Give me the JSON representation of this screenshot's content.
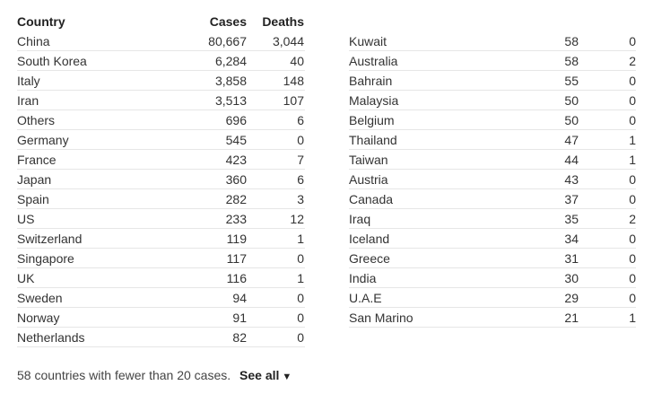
{
  "headers": {
    "country": "Country",
    "cases": "Cases",
    "deaths": "Deaths"
  },
  "left_rows": [
    {
      "country": "China",
      "cases": "80,667",
      "deaths": "3,044"
    },
    {
      "country": "South Korea",
      "cases": "6,284",
      "deaths": "40"
    },
    {
      "country": "Italy",
      "cases": "3,858",
      "deaths": "148"
    },
    {
      "country": "Iran",
      "cases": "3,513",
      "deaths": "107"
    },
    {
      "country": "Others",
      "cases": "696",
      "deaths": "6"
    },
    {
      "country": "Germany",
      "cases": "545",
      "deaths": "0"
    },
    {
      "country": "France",
      "cases": "423",
      "deaths": "7"
    },
    {
      "country": "Japan",
      "cases": "360",
      "deaths": "6"
    },
    {
      "country": "Spain",
      "cases": "282",
      "deaths": "3"
    },
    {
      "country": "US",
      "cases": "233",
      "deaths": "12"
    },
    {
      "country": "Switzerland",
      "cases": "119",
      "deaths": "1"
    },
    {
      "country": "Singapore",
      "cases": "117",
      "deaths": "0"
    },
    {
      "country": "UK",
      "cases": "116",
      "deaths": "1"
    },
    {
      "country": "Sweden",
      "cases": "94",
      "deaths": "0"
    },
    {
      "country": "Norway",
      "cases": "91",
      "deaths": "0"
    },
    {
      "country": "Netherlands",
      "cases": "82",
      "deaths": "0"
    }
  ],
  "right_rows": [
    {
      "country": "Kuwait",
      "cases": "58",
      "deaths": "0"
    },
    {
      "country": "Australia",
      "cases": "58",
      "deaths": "2"
    },
    {
      "country": "Bahrain",
      "cases": "55",
      "deaths": "0"
    },
    {
      "country": "Malaysia",
      "cases": "50",
      "deaths": "0"
    },
    {
      "country": "Belgium",
      "cases": "50",
      "deaths": "0"
    },
    {
      "country": "Thailand",
      "cases": "47",
      "deaths": "1"
    },
    {
      "country": "Taiwan",
      "cases": "44",
      "deaths": "1"
    },
    {
      "country": "Austria",
      "cases": "43",
      "deaths": "0"
    },
    {
      "country": "Canada",
      "cases": "37",
      "deaths": "0"
    },
    {
      "country": "Iraq",
      "cases": "35",
      "deaths": "2"
    },
    {
      "country": "Iceland",
      "cases": "34",
      "deaths": "0"
    },
    {
      "country": "Greece",
      "cases": "31",
      "deaths": "0"
    },
    {
      "country": "India",
      "cases": "30",
      "deaths": "0"
    },
    {
      "country": "U.A.E",
      "cases": "29",
      "deaths": "0"
    },
    {
      "country": "San Marino",
      "cases": "21",
      "deaths": "1"
    }
  ],
  "footer": {
    "note": "58 countries with fewer than 20 cases.",
    "see_all_label": "See all",
    "caret_icon": "caret-down-icon",
    "caret_glyph": "▼"
  }
}
